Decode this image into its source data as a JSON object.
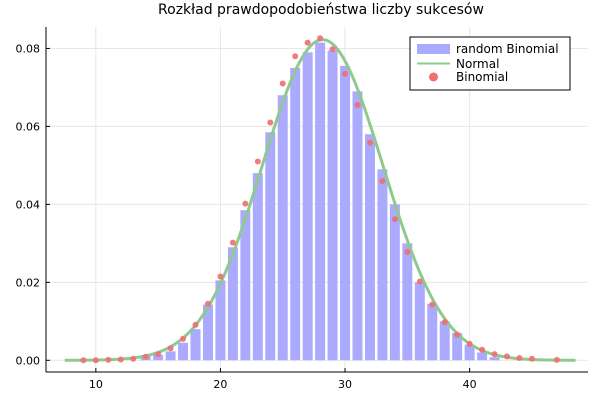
{
  "chart_data": {
    "type": "bar",
    "title": "Rozkład prawdopodobieństwa liczby sukcesów",
    "xlabel": "",
    "ylabel": "",
    "xlim": [
      6.0,
      49.5
    ],
    "ylim": [
      -0.003,
      0.0855
    ],
    "xticks": [
      10,
      20,
      30,
      40
    ],
    "xtick_labels": [
      "10",
      "20",
      "30",
      "40"
    ],
    "yticks": [
      0.0,
      0.02,
      0.04,
      0.06,
      0.08
    ],
    "ytick_labels": [
      "0.00",
      "0.02",
      "0.04",
      "0.06",
      "0.08"
    ],
    "grid": true,
    "legend_position": "top-right",
    "colors": {
      "bars": "#aaaaff",
      "normal": "#8fc98f",
      "binomial": "#ee6f6f"
    },
    "series": [
      {
        "name": "random Binomial",
        "type": "bar",
        "x": [
          14,
          15,
          16,
          17,
          18,
          19,
          20,
          21,
          22,
          23,
          24,
          25,
          26,
          27,
          28,
          29,
          30,
          31,
          32,
          33,
          34,
          35,
          36,
          37,
          38,
          39,
          40,
          41,
          42
        ],
        "values": [
          0.001,
          0.0014,
          0.0023,
          0.0045,
          0.008,
          0.0143,
          0.0205,
          0.029,
          0.0385,
          0.048,
          0.0585,
          0.068,
          0.075,
          0.079,
          0.0815,
          0.0795,
          0.0755,
          0.069,
          0.058,
          0.049,
          0.04,
          0.03,
          0.02,
          0.0145,
          0.01,
          0.007,
          0.004,
          0.002,
          0.0008
        ]
      },
      {
        "name": "Normal",
        "type": "line",
        "mean": 28.2,
        "sd": 4.85,
        "range": [
          7.5,
          48.5
        ]
      },
      {
        "name": "Binomial",
        "type": "scatter",
        "x": [
          9,
          10,
          11,
          12,
          13,
          14,
          15,
          16,
          17,
          18,
          19,
          20,
          21,
          22,
          23,
          24,
          25,
          26,
          27,
          28,
          29,
          30,
          31,
          32,
          33,
          34,
          35,
          36,
          37,
          38,
          39,
          40,
          41,
          42,
          43,
          44,
          45,
          47
        ],
        "values": [
          0.0,
          0.0,
          0.0001,
          0.0002,
          0.0004,
          0.0009,
          0.0016,
          0.0031,
          0.0055,
          0.0091,
          0.0145,
          0.0215,
          0.0302,
          0.0402,
          0.051,
          0.061,
          0.071,
          0.078,
          0.0815,
          0.0826,
          0.0798,
          0.0735,
          0.0655,
          0.0558,
          0.046,
          0.0362,
          0.0278,
          0.0202,
          0.0143,
          0.0098,
          0.0066,
          0.0042,
          0.0027,
          0.0016,
          0.001,
          0.0006,
          0.0004,
          0.0001
        ]
      }
    ]
  }
}
